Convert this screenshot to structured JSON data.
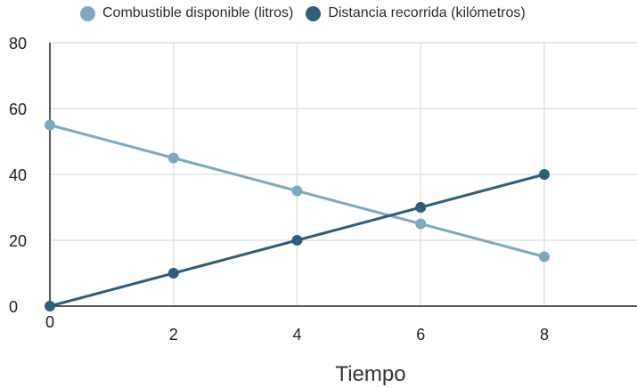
{
  "chart_data": {
    "type": "line",
    "title": "",
    "xlabel": "Tiempo",
    "ylabel": "",
    "xlim": [
      0,
      9.5
    ],
    "ylim": [
      0,
      80
    ],
    "xticks": [
      0,
      2,
      4,
      6,
      8
    ],
    "yticks": [
      0,
      20,
      40,
      60,
      80
    ],
    "grid": true,
    "legend_position": "top",
    "series": [
      {
        "name": "Combustible disponible (litros)",
        "color": "#7fa9c0",
        "x": [
          0,
          2,
          4,
          6,
          8
        ],
        "y": [
          55,
          45,
          35,
          25,
          15
        ]
      },
      {
        "name": "Distancia recorrida (kilómetros)",
        "color": "#2e5f7a",
        "x": [
          0,
          2,
          4,
          6,
          8
        ],
        "y": [
          0,
          10,
          20,
          30,
          40
        ]
      }
    ]
  }
}
